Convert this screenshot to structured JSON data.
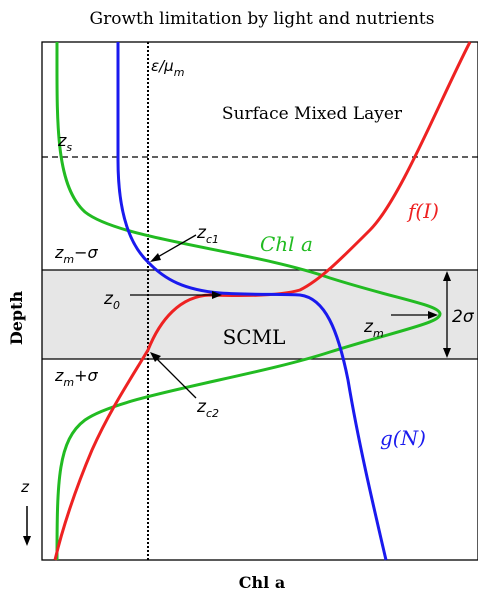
{
  "title": "Growth limitation by light and nutrients",
  "axes": {
    "xlabel": "Chl a",
    "ylabel": "Depth",
    "depth_arrow_label": "z"
  },
  "regions": {
    "surface_mixed_layer": "Surface Mixed Layer",
    "scml": "SCML"
  },
  "curves": {
    "chl": "Chl a",
    "light": "f(I)",
    "nutrient": "g(N)"
  },
  "labels": {
    "eps_mu": "ε/μ",
    "eps_mu_sub": "m",
    "zs": "z",
    "zs_sub": "s",
    "zm_minus": "z",
    "zm_minus_sub": "m",
    "zm_minus_tail": "−σ",
    "zm_plus": "z",
    "zm_plus_sub": "m",
    "zm_plus_tail": "+σ",
    "zc1": "z",
    "zc1_sub": "c1",
    "zc2": "z",
    "zc2_sub": "c2",
    "z0": "z",
    "z0_sub": "0",
    "zm": "z",
    "zm_sub": "m",
    "two_sigma": "2σ"
  },
  "colors": {
    "chl": "#22bb22",
    "light": "#ee2222",
    "nutrient": "#1a1aee",
    "band": "#e6e6e6"
  }
}
